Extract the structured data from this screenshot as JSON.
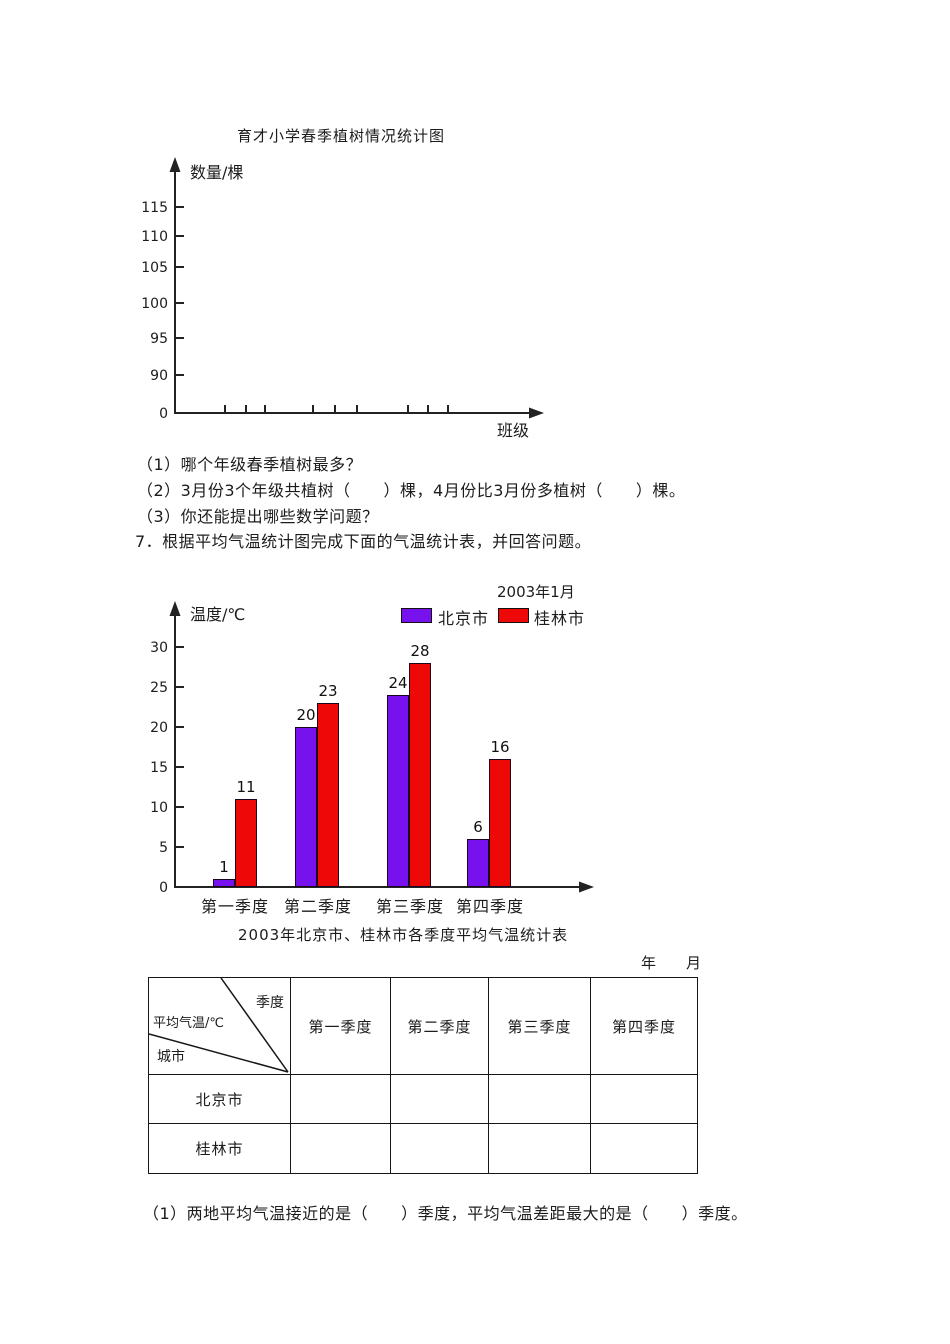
{
  "chart1": {
    "title": "育才小学春季植树情况统计图",
    "y_axis_label": "数量/棵",
    "x_axis_label": "班级"
  },
  "questions": {
    "q6_1": "（1）哪个年级春季植树最多？",
    "q6_2": "（2）3月份3个年级共植树（　　）棵，4月份比3月份多植树（　　）棵。",
    "q6_3": "（3）你还能提出哪些数学问题？",
    "q7_intro": "7．根据平均气温统计图完成下面的气温统计表，并回答问题。",
    "q7_1": "（1）两地平均气温接近的是（　　）季度，平均气温差距最大的是（　　）季度。"
  },
  "chart2": {
    "period_label": "2003年1月",
    "y_axis_label": "温度/℃"
  },
  "table": {
    "title": "2003年北京市、桂林市各季度平均气温统计表",
    "year_month_label": "年　　月",
    "corner": {
      "quarter": "季度",
      "measure": "平均气温/℃",
      "city": "城市"
    },
    "columns": [
      "第一季度",
      "第二季度",
      "第三季度",
      "第四季度"
    ],
    "rows": [
      {
        "label": "北京市",
        "cells": [
          "",
          "",
          "",
          ""
        ]
      },
      {
        "label": "桂林市",
        "cells": [
          "",
          "",
          "",
          ""
        ]
      }
    ]
  },
  "chart_data": [
    {
      "type": "bar",
      "title": "育才小学春季植树情况统计图",
      "xlabel": "班级",
      "ylabel": "数量/棵",
      "y_ticks": [
        0,
        90,
        95,
        100,
        105,
        110,
        115
      ],
      "categories": [],
      "series": [],
      "note": "blank axes with 9 unlabeled x tick marks in 3 groups; no bars plotted",
      "grid": false
    },
    {
      "type": "bar",
      "title": "2003年1月",
      "xlabel": "",
      "ylabel": "温度/℃",
      "categories": [
        "第一季度",
        "第二季度",
        "第三季度",
        "第四季度"
      ],
      "series": [
        {
          "name": "北京市",
          "color": "#7711ee",
          "values": [
            1,
            20,
            24,
            6
          ]
        },
        {
          "name": "桂林市",
          "color": "#ee0808",
          "values": [
            11,
            23,
            28,
            16
          ]
        }
      ],
      "y_ticks": [
        0,
        5,
        10,
        15,
        20,
        25,
        30
      ],
      "ylim": [
        0,
        32
      ],
      "legend_position": "top-right",
      "grid": false
    }
  ]
}
